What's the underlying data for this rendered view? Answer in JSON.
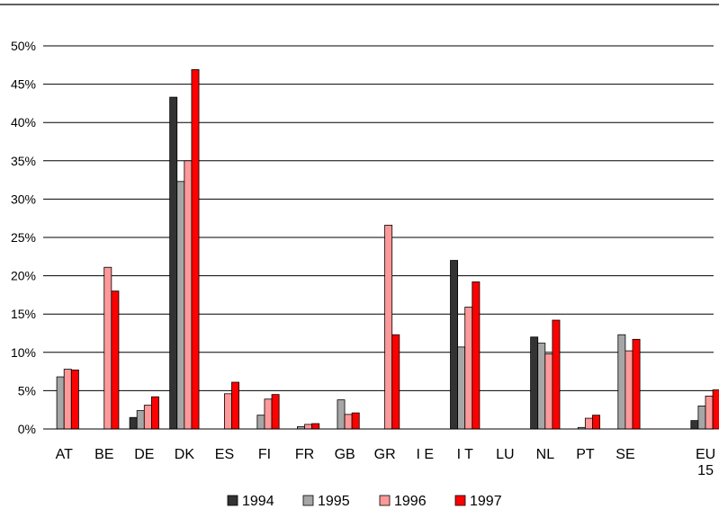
{
  "chart_data": {
    "type": "bar",
    "categories": [
      {
        "label": "AT",
        "sub": ""
      },
      {
        "label": "BE",
        "sub": ""
      },
      {
        "label": "DE",
        "sub": ""
      },
      {
        "label": "DK",
        "sub": ""
      },
      {
        "label": "ES",
        "sub": ""
      },
      {
        "label": "FI",
        "sub": ""
      },
      {
        "label": "FR",
        "sub": ""
      },
      {
        "label": "GB",
        "sub": ""
      },
      {
        "label": "GR",
        "sub": ""
      },
      {
        "label": "I E",
        "sub": ""
      },
      {
        "label": "I T",
        "sub": ""
      },
      {
        "label": "LU",
        "sub": ""
      },
      {
        "label": "NL",
        "sub": ""
      },
      {
        "label": "PT",
        "sub": ""
      },
      {
        "label": "SE",
        "sub": ""
      },
      {
        "label": "",
        "sub": ""
      },
      {
        "label": "EU",
        "sub": "15"
      }
    ],
    "series": [
      {
        "name": "1994",
        "color": "#333333",
        "values": [
          0,
          0,
          1.5,
          43.3,
          0,
          0,
          0,
          0,
          0,
          0,
          22.0,
          0,
          12.0,
          0,
          0,
          0,
          1.1
        ]
      },
      {
        "name": "1995",
        "color": "#a6a6a6",
        "values": [
          6.8,
          0,
          2.4,
          32.3,
          0,
          1.8,
          0.3,
          3.8,
          0,
          0,
          10.7,
          0,
          11.2,
          0.2,
          12.3,
          0,
          3.0
        ]
      },
      {
        "name": "1996",
        "color": "#ff9999",
        "values": [
          7.8,
          21.1,
          3.1,
          35.0,
          4.6,
          3.9,
          0.6,
          1.9,
          26.6,
          0,
          15.9,
          0,
          9.8,
          1.4,
          10.2,
          0,
          4.3
        ]
      },
      {
        "name": "1997",
        "color": "#ff0000",
        "values": [
          7.7,
          18.0,
          4.2,
          46.9,
          6.1,
          4.5,
          0.7,
          2.1,
          12.3,
          0,
          19.2,
          0,
          14.2,
          1.8,
          11.7,
          0,
          5.1
        ]
      }
    ],
    "y_ticks": [
      "0%",
      "5%",
      "10%",
      "15%",
      "20%",
      "25%",
      "30%",
      "35%",
      "40%",
      "45%",
      "50%"
    ],
    "ylim": [
      0,
      50
    ],
    "y_unit": "%",
    "grid": true,
    "legend_position": "bottom",
    "title": "",
    "xlabel": "",
    "ylabel": ""
  }
}
